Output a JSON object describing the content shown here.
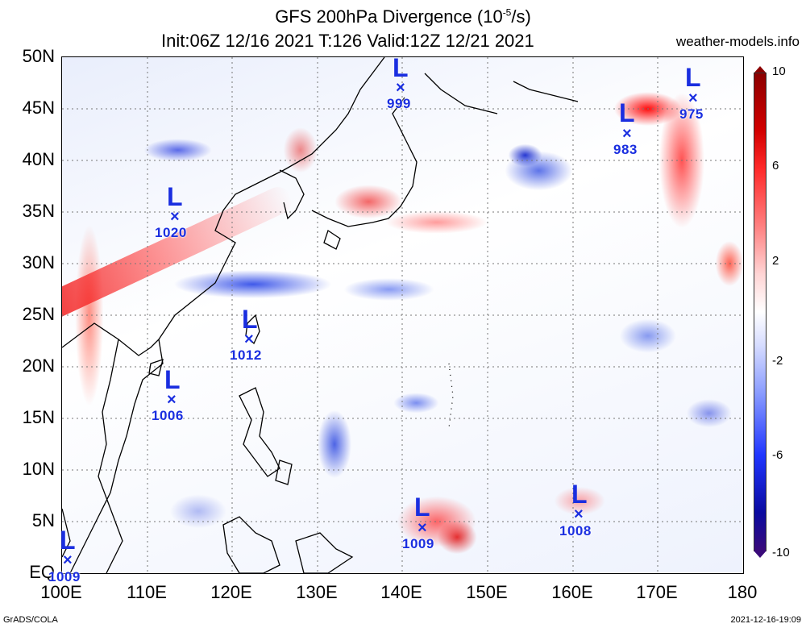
{
  "header": {
    "title_line1": "GFS 200hPa Divergence (10",
    "title_sup": "-5",
    "title_unit_tail": "/s)",
    "title_line2": "Init:06Z 12/16 2021  T:126  Valid:12Z 12/21 2021",
    "site": "weather-models.info"
  },
  "axes": {
    "lat_labels": [
      "50N",
      "45N",
      "40N",
      "35N",
      "30N",
      "25N",
      "20N",
      "15N",
      "10N",
      "5N",
      "EQ"
    ],
    "lon_labels": [
      "100E",
      "110E",
      "120E",
      "130E",
      "140E",
      "150E",
      "160E",
      "170E",
      "180"
    ]
  },
  "colorbar": {
    "labels": [
      "10",
      "6",
      "2",
      "-2",
      "-6",
      "-10"
    ]
  },
  "lows": [
    {
      "symbol": "L",
      "mark": "×",
      "pressure": "999"
    },
    {
      "symbol": "L",
      "mark": "×",
      "pressure": "975"
    },
    {
      "symbol": "L",
      "mark": "×",
      "pressure": "983"
    },
    {
      "symbol": "L",
      "mark": "×",
      "pressure": "1020"
    },
    {
      "symbol": "L",
      "mark": "×",
      "pressure": "1012"
    },
    {
      "symbol": "L",
      "mark": "×",
      "pressure": "1006"
    },
    {
      "symbol": "L",
      "mark": "×",
      "pressure": "1009"
    },
    {
      "symbol": "L",
      "mark": "×",
      "pressure": "1008"
    },
    {
      "symbol": "L",
      "mark": "×",
      "pressure": "1009"
    }
  ],
  "footer": {
    "left": "GrADS/COLA",
    "right": "2021-12-16-19:09"
  },
  "colors": {
    "low_marker": "#1a2ee0",
    "positive": "#ff0000",
    "negative": "#0000ff"
  }
}
